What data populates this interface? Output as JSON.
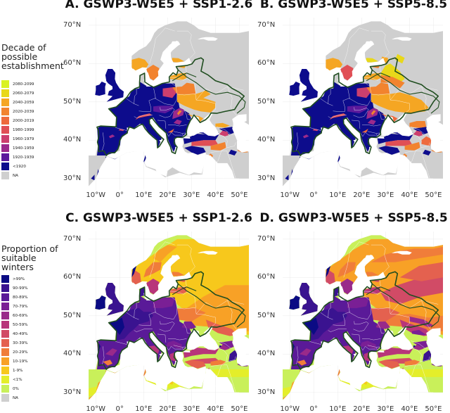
{
  "legends": {
    "establishment": {
      "title_lines": [
        "Decade of",
        "possible",
        "establishment"
      ],
      "items": [
        {
          "label": "2080-2099",
          "color": "#d9f224"
        },
        {
          "label": "2060-2079",
          "color": "#e8d81a"
        },
        {
          "label": "2040-2059",
          "color": "#f5a623"
        },
        {
          "label": "2020-2039",
          "color": "#f2832e"
        },
        {
          "label": "2000-2019",
          "color": "#ee6a3c"
        },
        {
          "label": "1980-1999",
          "color": "#e04f55"
        },
        {
          "label": "1960-1979",
          "color": "#cc3f6e"
        },
        {
          "label": "1940-1959",
          "color": "#9b2a8c"
        },
        {
          "label": "1920-1939",
          "color": "#5c1a9c"
        },
        {
          "label": "<1920",
          "color": "#0d0c8c"
        },
        {
          "label": "NA",
          "color": "#cfcfcf"
        }
      ]
    },
    "suitability": {
      "title_lines": [
        "Proportion of",
        "suitable",
        "winters"
      ],
      "items": [
        {
          "label": ">99%",
          "color": "#0b0b84"
        },
        {
          "label": "90-99%",
          "color": "#3a1390"
        },
        {
          "label": "80-89%",
          "color": "#5a1a98"
        },
        {
          "label": "70-79%",
          "color": "#7a1f95"
        },
        {
          "label": "60-69%",
          "color": "#992a8a"
        },
        {
          "label": "50-59%",
          "color": "#b8357a"
        },
        {
          "label": "40-49%",
          "color": "#d14b66"
        },
        {
          "label": "30-39%",
          "color": "#e4614f"
        },
        {
          "label": "20-29%",
          "color": "#f07d3a"
        },
        {
          "label": "10-19%",
          "color": "#f8a126"
        },
        {
          "label": "1-9%",
          "color": "#f7c81c"
        },
        {
          "label": "<1%",
          "color": "#e4ee2a"
        },
        {
          "label": "0%",
          "color": "#c9f05a"
        },
        {
          "label": "NA",
          "color": "#cfcfcf"
        }
      ]
    }
  },
  "panels": [
    {
      "id": "A",
      "title": "A. GSWP3-W5E5 + SSP1-2.6",
      "kind": "establishment"
    },
    {
      "id": "B",
      "title": "B. GSWP3-W5E5 + SSP5-8.5",
      "kind": "establishment"
    },
    {
      "id": "C",
      "title": "C. GSWP3-W5E5 + SSP1-2.6",
      "kind": "suitability"
    },
    {
      "id": "D",
      "title": "D. GSWP3-W5E5 + SSP5-8.5",
      "kind": "suitability"
    }
  ],
  "axes": {
    "lat_ticks": [
      "70°N",
      "60°N",
      "50°N",
      "40°N",
      "30°N"
    ],
    "lon_ticks": [
      "10°W",
      "0°",
      "10°E",
      "20°E",
      "30°E",
      "40°E",
      "50°E"
    ]
  },
  "colors": {
    "land_na": "#cfcfcf",
    "sea": "#ffffff",
    "border_green": "#1f4d1f",
    "country_border": "#ffffff"
  }
}
